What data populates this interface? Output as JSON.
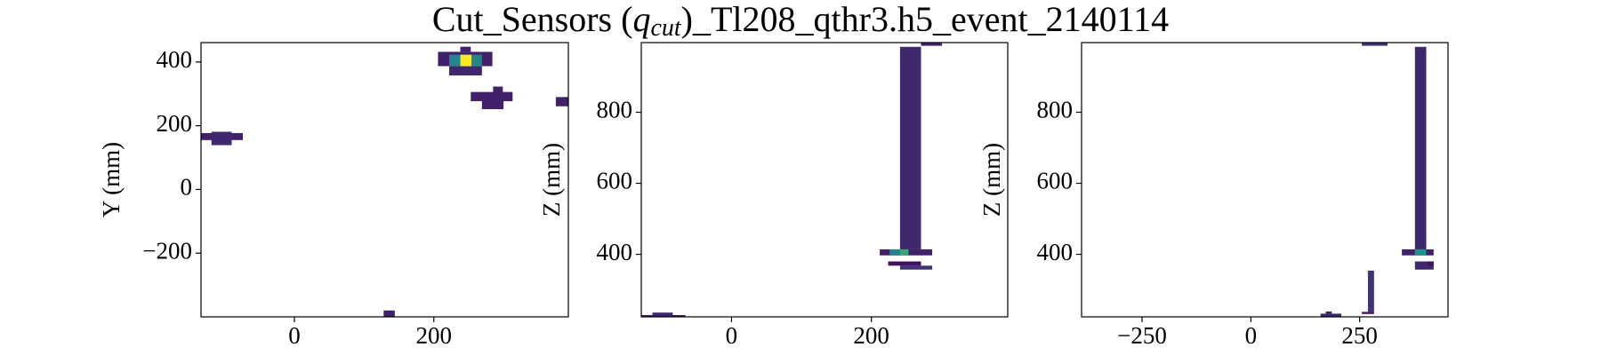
{
  "title": [
    "Cut_Sensors (",
    "q",
    "cut",
    ")_Tl208_qthr3.h5_event_2140114"
  ],
  "chart_data": [
    {
      "type": "heatmap",
      "ylabel": "Y (mm)",
      "colormap": "viridis",
      "vlim": [
        0,
        1
      ],
      "xlim": [
        -134,
        393
      ],
      "ylim": [
        -400,
        461
      ],
      "xticks": [
        0,
        200
      ],
      "yticks": [
        {
          "value": -200,
          "label": "−200"
        },
        0,
        200,
        400
      ],
      "cells": [
        {
          "x": [
            206,
            284
          ],
          "y": [
            387,
            432
          ],
          "value": 0.1
        },
        {
          "x": [
            222,
            269
          ],
          "y": [
            358,
            387
          ],
          "value": 0.12
        },
        {
          "x": [
            238,
            253
          ],
          "y": [
            432,
            448
          ],
          "value": 0.1
        },
        {
          "x": [
            222,
            269
          ],
          "y": [
            387,
            423
          ],
          "value": 0.45
        },
        {
          "x": [
            238,
            254
          ],
          "y": [
            387,
            423
          ],
          "value": 1.0
        },
        {
          "x": [
            253,
            313
          ],
          "y": [
            277,
            306
          ],
          "value": 0.1
        },
        {
          "x": [
            269,
            300
          ],
          "y": [
            252,
            281
          ],
          "value": 0.1
        },
        {
          "x": [
            285,
            299
          ],
          "y": [
            303,
            323
          ],
          "value": 0.1
        },
        {
          "x": [
            375,
            393
          ],
          "y": [
            261,
            290
          ],
          "value": 0.1
        },
        {
          "x": [
            -134,
            -74
          ],
          "y": [
            155,
            177
          ],
          "value": 0.1
        },
        {
          "x": [
            -119,
            -90
          ],
          "y": [
            139,
            181
          ],
          "value": 0.12
        },
        {
          "x": [
            128,
            144
          ],
          "y": [
            -400,
            -380
          ],
          "value": 0.1
        }
      ]
    },
    {
      "type": "heatmap",
      "ylabel": "Z (mm)",
      "colormap": "viridis",
      "vlim": [
        0,
        1
      ],
      "xlim": [
        -129,
        395
      ],
      "ylim": [
        224,
        996
      ],
      "xticks": [
        0,
        200
      ],
      "yticks": [
        400,
        600,
        800
      ],
      "cells": [
        {
          "x": [
            241,
            271
          ],
          "y": [
            414,
            984
          ],
          "value": 0.12
        },
        {
          "x": [
            212,
            287
          ],
          "y": [
            397,
            414
          ],
          "value": 0.1
        },
        {
          "x": [
            226,
            253
          ],
          "y": [
            397,
            414
          ],
          "value": 0.45
        },
        {
          "x": [
            241,
            253
          ],
          "y": [
            397,
            414
          ],
          "value": 0.6
        },
        {
          "x": [
            224,
            271
          ],
          "y": [
            368,
            380
          ],
          "value": 0.05
        },
        {
          "x": [
            241,
            287
          ],
          "y": [
            357,
            368
          ],
          "value": 0.15
        },
        {
          "x": [
            271,
            301
          ],
          "y": [
            987,
            996
          ],
          "value": 0.1
        },
        {
          "x": [
            -113,
            -84
          ],
          "y": [
            224,
            236
          ],
          "value": 0.12
        },
        {
          "x": [
            -129,
            -66
          ],
          "y": [
            224,
            229
          ],
          "value": 0.08
        }
      ]
    },
    {
      "type": "heatmap",
      "ylabel": "Z (mm)",
      "colormap": "viridis",
      "vlim": [
        0,
        1
      ],
      "xlim": [
        -389,
        453
      ],
      "ylim": [
        224,
        996
      ],
      "xticks": [
        {
          "value": -250,
          "label": "−250"
        },
        0,
        250
      ],
      "yticks": [
        400,
        600,
        800
      ],
      "cells": [
        {
          "x": [
            377,
            403
          ],
          "y": [
            414,
            984
          ],
          "value": 0.12
        },
        {
          "x": [
            347,
            420
          ],
          "y": [
            397,
            414
          ],
          "value": 0.1
        },
        {
          "x": [
            377,
            403
          ],
          "y": [
            397,
            414
          ],
          "value": 0.5
        },
        {
          "x": [
            377,
            420
          ],
          "y": [
            357,
            380
          ],
          "value": 0.12
        },
        {
          "x": [
            406,
            420
          ],
          "y": [
            368,
            380
          ],
          "value": 0.05
        },
        {
          "x": [
            255,
            314
          ],
          "y": [
            987,
            996
          ],
          "value": 0.15
        },
        {
          "x": [
            269,
            283
          ],
          "y": [
            238,
            354
          ],
          "value": 0.15
        },
        {
          "x": [
            255,
            283
          ],
          "y": [
            232,
            238
          ],
          "value": 0.06
        },
        {
          "x": [
            160,
            208
          ],
          "y": [
            224,
            233
          ],
          "value": 0.12
        },
        {
          "x": [
            172,
            186
          ],
          "y": [
            233,
            239
          ],
          "value": 0.1
        }
      ]
    }
  ]
}
